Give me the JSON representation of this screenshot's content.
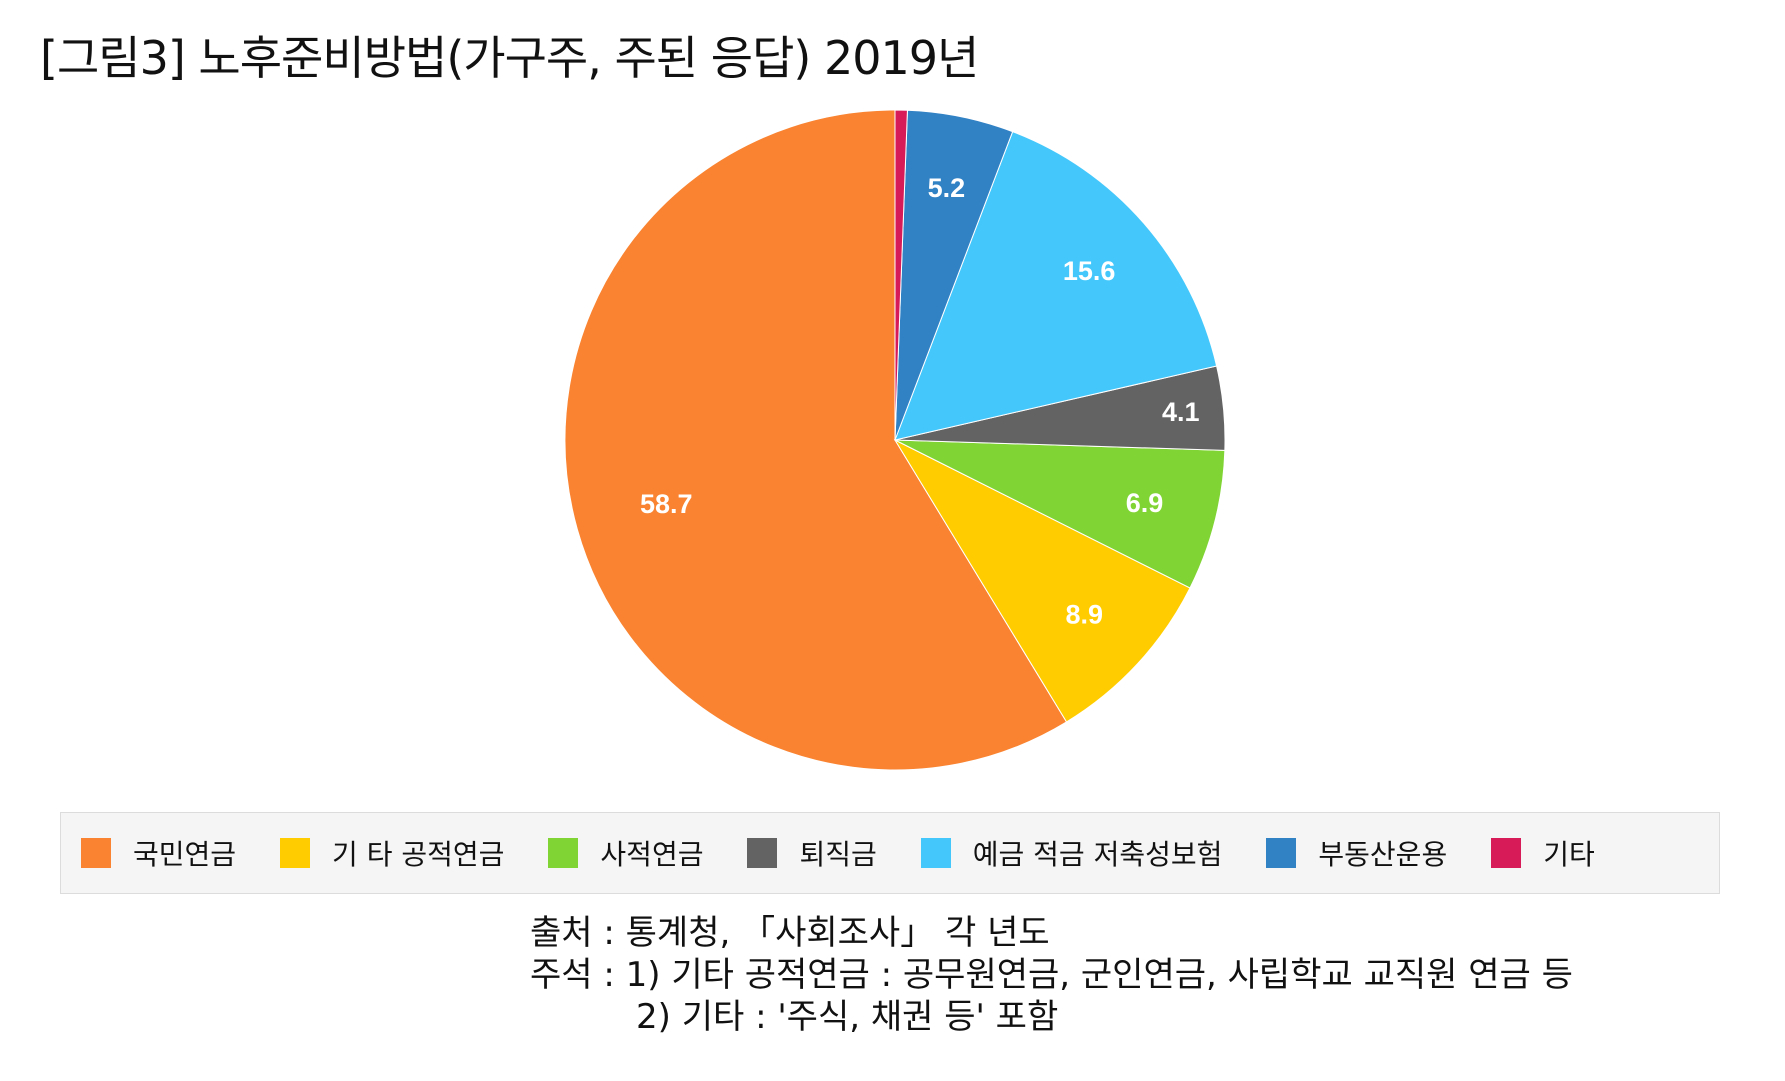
{
  "title": "[그림3] 노후준비방법(가구주, 주된 응답) 2019년",
  "chart_data": {
    "type": "pie",
    "categories": [
      "국민연금",
      "기 타 공적연금",
      "사적연금",
      "퇴직금",
      "예금 적금 저축성보험",
      "부동산운용",
      "기타"
    ],
    "values": [
      58.7,
      8.9,
      6.9,
      4.1,
      15.6,
      5.2,
      0.6
    ],
    "labels": [
      "58.7",
      "8.9",
      "6.9",
      "4.1",
      "15.6",
      "5.2",
      ""
    ],
    "colors": [
      "#F98330",
      "#FFCC00",
      "#80D434",
      "#636363",
      "#44C8FB",
      "#3181C5",
      "#D61B58"
    ],
    "legend_position": "bottom"
  },
  "notes": {
    "source": "출처 : 통계청, 「사회조사」 각 년도",
    "note1": "주석 : 1) 기타 공적연금 : 공무원연금, 군인연금, 사립학교 교직원 연금 등",
    "note2": "2) 기타 : '주식, 채권 등' 포함"
  }
}
